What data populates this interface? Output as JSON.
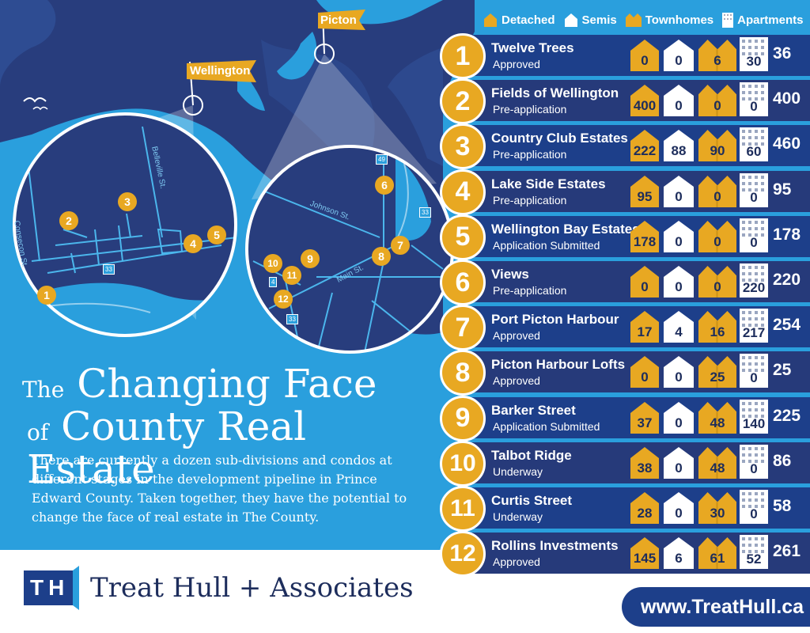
{
  "legend": {
    "detached": "Detached",
    "semis": "Semis",
    "townhomes": "Townhomes",
    "apartments": "Apartments"
  },
  "map": {
    "wellington_flag": "Wellington",
    "picton_flag": "Picton",
    "left_street_1": "Consecon St.",
    "left_street_2": "Belleville St.",
    "left_highway": "33",
    "right_street_1": "Johnson St.",
    "right_street_2": "Main St.",
    "right_highway_1": "49",
    "right_highway_2": "33",
    "right_highway_3": "4",
    "right_highway_4": "33",
    "markers": [
      "1",
      "2",
      "3",
      "4",
      "5",
      "6",
      "7",
      "8",
      "9",
      "10",
      "11",
      "12"
    ]
  },
  "title": {
    "line1_small": "The",
    "line1_big": "Changing Face",
    "line2_small": "of",
    "line2_big": "County Real Estate"
  },
  "intro": "There are currently a dozen sub-divisions and condos at different stages in the development pipeline in Prince Edward County. Taken together, they have the potential to change the face of real estate in The County.",
  "footer": {
    "logo_letters": "TH",
    "company": "Treat Hull + Associates",
    "url": "www.TreatHull.ca"
  },
  "colors": {
    "detached": "#e8a822",
    "semis": "#ffffff",
    "townhomes": "#e8a822",
    "apartments": "#ffffff",
    "band_odd": "#1d3f8a",
    "band_even": "#263a7a",
    "land": "#283d7d",
    "water": "#2a9fdd"
  },
  "chart_data": {
    "type": "table",
    "columns": [
      "Detached",
      "Semis",
      "Townhomes",
      "Apartments",
      "Total"
    ],
    "rows": [
      {
        "num": "1",
        "name": "Twelve Trees",
        "status": "Approved",
        "detached": 0,
        "semis": 0,
        "townhomes": 6,
        "apartments": 30,
        "total": 36
      },
      {
        "num": "2",
        "name": "Fields of Wellington",
        "status": "Pre-application",
        "detached": 400,
        "semis": 0,
        "townhomes": 0,
        "apartments": 0,
        "total": 400
      },
      {
        "num": "3",
        "name": "Country Club Estates",
        "status": "Pre-application",
        "detached": 222,
        "semis": 88,
        "townhomes": 90,
        "apartments": 60,
        "total": 460
      },
      {
        "num": "4",
        "name": "Lake Side Estates",
        "status": "Pre-application",
        "detached": 95,
        "semis": 0,
        "townhomes": 0,
        "apartments": 0,
        "total": 95
      },
      {
        "num": "5",
        "name": "Wellington Bay Estates",
        "status": "Application Submitted",
        "detached": 178,
        "semis": 0,
        "townhomes": 0,
        "apartments": 0,
        "total": 178
      },
      {
        "num": "6",
        "name": "Views",
        "status": "Pre-application",
        "detached": 0,
        "semis": 0,
        "townhomes": 0,
        "apartments": 220,
        "total": 220
      },
      {
        "num": "7",
        "name": "Port Picton Harbour",
        "status": "Approved",
        "detached": 17,
        "semis": 4,
        "townhomes": 16,
        "apartments": 217,
        "total": 254
      },
      {
        "num": "8",
        "name": "Picton Harbour Lofts",
        "status": "Approved",
        "detached": 0,
        "semis": 0,
        "townhomes": 25,
        "apartments": 0,
        "total": 25
      },
      {
        "num": "9",
        "name": "Barker Street",
        "status": "Application Submitted",
        "detached": 37,
        "semis": 0,
        "townhomes": 48,
        "apartments": 140,
        "total": 225
      },
      {
        "num": "10",
        "name": "Talbot Ridge",
        "status": "Underway",
        "detached": 38,
        "semis": 0,
        "townhomes": 48,
        "apartments": 0,
        "total": 86
      },
      {
        "num": "11",
        "name": "Curtis Street",
        "status": "Underway",
        "detached": 28,
        "semis": 0,
        "townhomes": 30,
        "apartments": 0,
        "total": 58
      },
      {
        "num": "12",
        "name": "Rollins Investments",
        "status": "Approved",
        "detached": 145,
        "semis": 6,
        "townhomes": 61,
        "apartments": 52,
        "total": 261
      }
    ]
  }
}
